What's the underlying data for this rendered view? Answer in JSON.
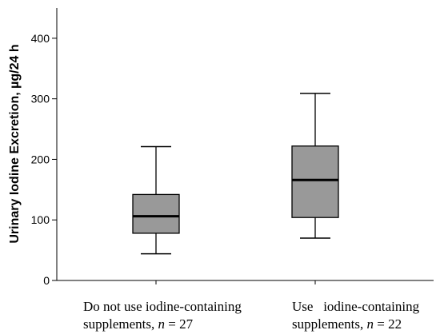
{
  "chart_data": {
    "type": "boxplot",
    "ylabel": "Urinary Iodine Excretion, µg/24 h",
    "ylim": [
      0,
      450
    ],
    "yticks": [
      0,
      100,
      200,
      300,
      400
    ],
    "ytick_labels": [
      "0",
      "100",
      "200",
      "300",
      "400"
    ],
    "grid": false,
    "box_color": "#999999",
    "categories": [
      {
        "line1": "Do not use iodine-containing",
        "line2_prefix": "supplements, ",
        "line2_n": "n",
        "line2_suffix": " = 27",
        "whisker_low": 44,
        "q1": 78,
        "median": 106,
        "q3": 142,
        "whisker_high": 221
      },
      {
        "line1": "Use   iodine-containing",
        "line2_prefix": "supplements, ",
        "line2_n": "n",
        "line2_suffix": " = 22",
        "whisker_low": 70,
        "q1": 104,
        "median": 166,
        "q3": 222,
        "whisker_high": 309
      }
    ]
  }
}
